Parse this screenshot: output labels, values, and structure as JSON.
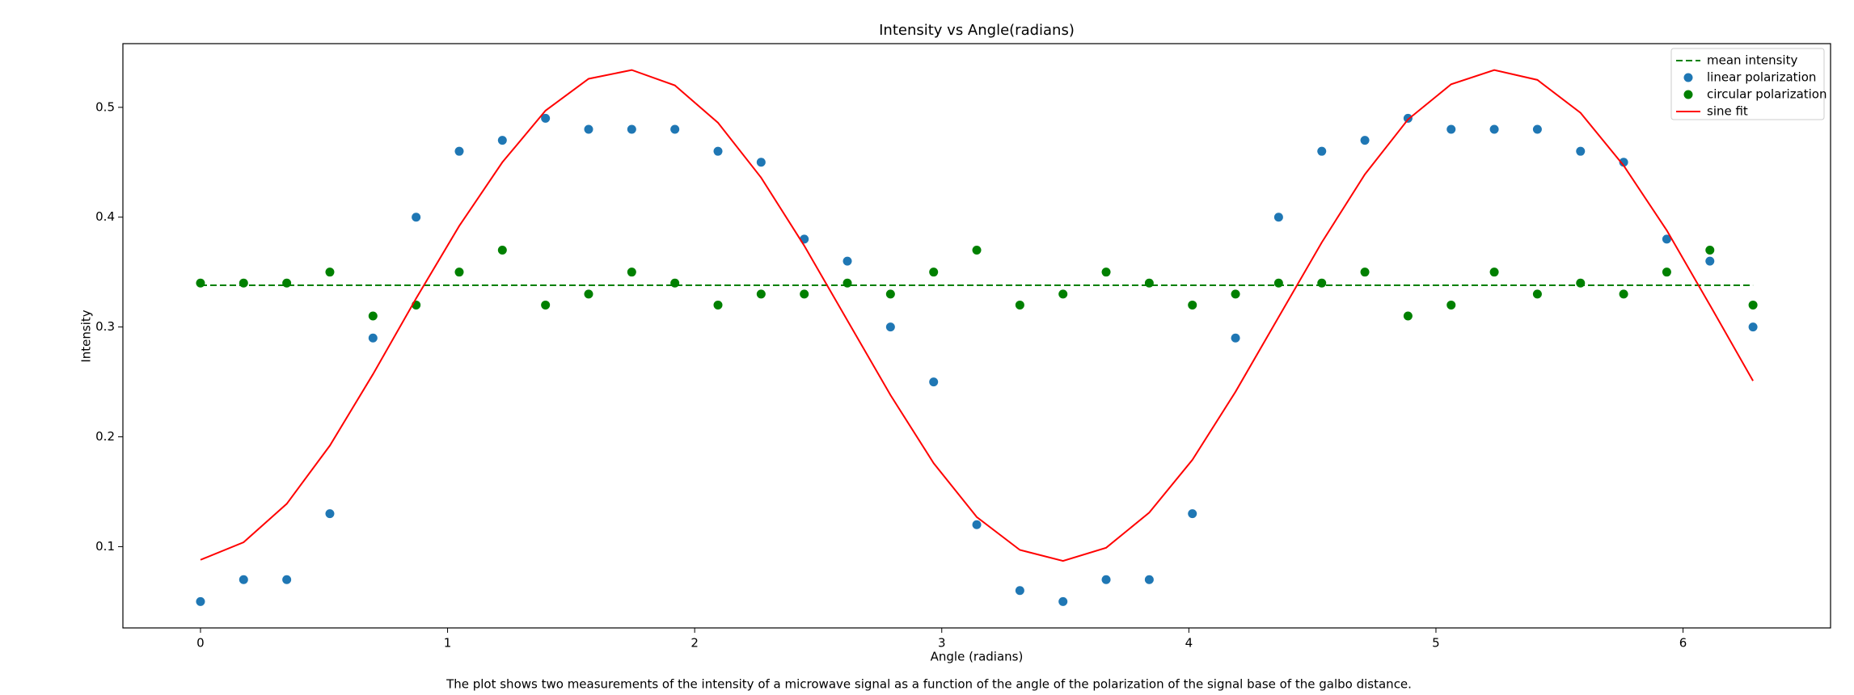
{
  "chart_data": {
    "type": "scatter",
    "title": "Intensity vs Angle(radians)",
    "xlabel": "Angle (radians)",
    "ylabel": "Intensity",
    "caption": "The plot shows two measurements of the intensity of a microwave signal as a function of the angle of the polarization of the signal base of the galbo distance.",
    "x": [
      0,
      0.1745,
      0.3491,
      0.5236,
      0.6981,
      0.8727,
      1.0472,
      1.2217,
      1.3963,
      1.5708,
      1.7453,
      1.9199,
      2.0944,
      2.2689,
      2.4435,
      2.618,
      2.7925,
      2.9671,
      3.1416,
      3.3161,
      3.4907,
      3.6652,
      3.8397,
      4.0143,
      4.1888,
      4.3633,
      4.5379,
      4.7124,
      4.8869,
      5.0615,
      5.236,
      5.4105,
      5.5851,
      5.7596,
      5.9341,
      6.1087,
      6.2832
    ],
    "series": [
      {
        "name": "mean intensity",
        "kind": "line",
        "dashed": true,
        "color": "#008000",
        "values": [
          0.338,
          0.338,
          0.338,
          0.338,
          0.338,
          0.338,
          0.338,
          0.338,
          0.338,
          0.338,
          0.338,
          0.338,
          0.338,
          0.338,
          0.338,
          0.338,
          0.338,
          0.338,
          0.338,
          0.338,
          0.338,
          0.338,
          0.338,
          0.338,
          0.338,
          0.338,
          0.338,
          0.338,
          0.338,
          0.338,
          0.338,
          0.338,
          0.338,
          0.338,
          0.338,
          0.338,
          0.338
        ]
      },
      {
        "name": "linear polarization",
        "kind": "scatter",
        "color": "#1f77b4",
        "values": [
          0.05,
          0.07,
          0.07,
          0.13,
          0.29,
          0.4,
          0.46,
          0.47,
          0.49,
          0.48,
          0.48,
          0.48,
          0.46,
          0.45,
          0.38,
          0.36,
          0.3,
          0.25,
          0.12,
          0.06,
          0.05,
          0.07,
          0.07,
          0.13,
          0.29,
          0.4,
          0.46,
          0.47,
          0.49,
          0.48,
          0.48,
          0.48,
          0.46,
          0.45,
          0.38,
          0.36,
          0.3
        ]
      },
      {
        "name": "circular polarization",
        "kind": "scatter",
        "color": "#008000",
        "values": [
          0.34,
          0.34,
          0.34,
          0.35,
          0.31,
          0.32,
          0.35,
          0.37,
          0.32,
          0.33,
          0.35,
          0.34,
          0.32,
          0.33,
          0.33,
          0.34,
          0.33,
          0.35,
          0.37,
          0.32,
          0.33,
          0.35,
          0.34,
          0.32,
          0.33,
          0.34,
          0.34,
          0.35,
          0.31,
          0.32,
          0.35,
          0.33,
          0.34,
          0.33,
          0.35,
          0.37,
          0.32
        ]
      },
      {
        "name": "sine fit",
        "kind": "line",
        "color": "#ff0000",
        "values": [
          0.088,
          0.104,
          0.139,
          0.192,
          0.257,
          0.326,
          0.392,
          0.45,
          0.497,
          0.526,
          0.534,
          0.52,
          0.486,
          0.436,
          0.374,
          0.306,
          0.238,
          0.176,
          0.127,
          0.097,
          0.087,
          0.099,
          0.131,
          0.179,
          0.241,
          0.309,
          0.377,
          0.439,
          0.489,
          0.521,
          0.534,
          0.525,
          0.495,
          0.447,
          0.388,
          0.32,
          0.251
        ]
      }
    ],
    "xlim": [
      -0.314,
      6.597
    ],
    "ylim": [
      0.026,
      0.558
    ],
    "xticks": [
      0,
      1,
      2,
      3,
      4,
      5,
      6
    ],
    "yticks": [
      0.1,
      0.2,
      0.3,
      0.4,
      0.5
    ],
    "legend": "upper right",
    "grid": false
  }
}
